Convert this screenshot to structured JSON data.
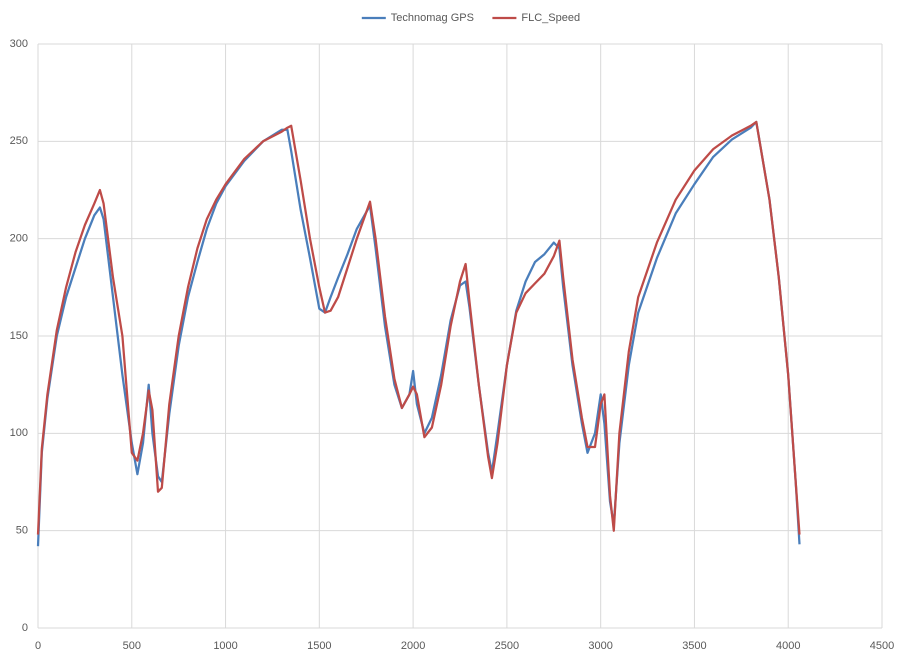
{
  "chart_data": {
    "type": "line",
    "x": [
      0,
      20,
      50,
      100,
      150,
      200,
      250,
      300,
      330,
      350,
      400,
      450,
      500,
      530,
      560,
      590,
      610,
      640,
      660,
      700,
      750,
      800,
      850,
      900,
      950,
      1000,
      1100,
      1200,
      1300,
      1330,
      1350,
      1400,
      1450,
      1500,
      1530,
      1560,
      1600,
      1650,
      1700,
      1770,
      1800,
      1850,
      1900,
      1940,
      1980,
      2000,
      2020,
      2060,
      2100,
      2150,
      2200,
      2250,
      2280,
      2300,
      2350,
      2400,
      2420,
      2450,
      2500,
      2550,
      2600,
      2650,
      2700,
      2750,
      2780,
      2800,
      2850,
      2900,
      2930,
      2970,
      3000,
      3020,
      3050,
      3070,
      3100,
      3150,
      3200,
      3300,
      3400,
      3500,
      3600,
      3700,
      3800,
      3830,
      3900,
      3950,
      4000,
      4040,
      4060
    ],
    "series": [
      {
        "name": "Technomag GPS",
        "color": "#4a7ebb",
        "values": [
          42,
          90,
          118,
          150,
          170,
          185,
          200,
          212,
          216,
          210,
          170,
          130,
          95,
          79,
          95,
          125,
          100,
          78,
          75,
          110,
          145,
          170,
          188,
          205,
          218,
          227,
          240,
          250,
          256,
          256,
          245,
          215,
          190,
          164,
          162,
          170,
          180,
          192,
          205,
          217,
          195,
          155,
          125,
          113,
          120,
          132,
          115,
          100,
          108,
          130,
          158,
          176,
          178,
          165,
          125,
          90,
          80,
          100,
          135,
          163,
          178,
          188,
          192,
          198,
          195,
          175,
          135,
          105,
          90,
          100,
          120,
          105,
          65,
          53,
          95,
          135,
          162,
          190,
          213,
          228,
          242,
          251,
          257,
          260,
          220,
          180,
          130,
          75,
          43
        ]
      },
      {
        "name": "FLC_Speed",
        "color": "#be4b48",
        "values": [
          48,
          92,
          120,
          153,
          175,
          193,
          207,
          218,
          225,
          218,
          180,
          150,
          90,
          86,
          100,
          122,
          112,
          70,
          72,
          115,
          150,
          175,
          195,
          210,
          220,
          228,
          241,
          250,
          255,
          257,
          258,
          230,
          200,
          175,
          162,
          163,
          170,
          185,
          200,
          219,
          200,
          160,
          128,
          113,
          120,
          124,
          120,
          98,
          103,
          125,
          155,
          178,
          187,
          168,
          125,
          88,
          77,
          95,
          135,
          162,
          172,
          177,
          182,
          191,
          199,
          180,
          138,
          108,
          93,
          93,
          115,
          120,
          68,
          50,
          100,
          142,
          170,
          198,
          220,
          235,
          246,
          253,
          258,
          260,
          220,
          180,
          130,
          75,
          48
        ]
      }
    ],
    "xlim": [
      0,
      4500
    ],
    "xticks": [
      0,
      500,
      1000,
      1500,
      2000,
      2500,
      3000,
      3500,
      4000,
      4500
    ],
    "ylim": [
      0,
      300
    ],
    "yticks": [
      0,
      50,
      100,
      150,
      200,
      250,
      300
    ],
    "grid": true,
    "legend": "top"
  }
}
